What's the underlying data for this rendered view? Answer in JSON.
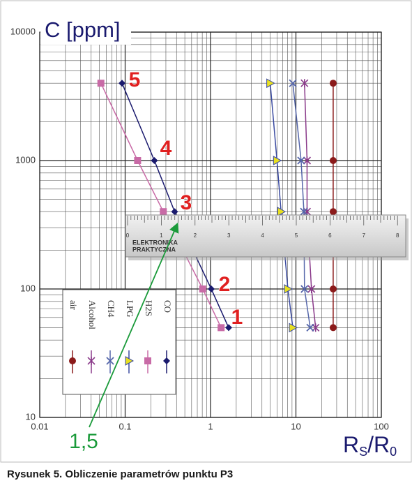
{
  "chart_data": {
    "type": "line",
    "y_label": "C [ppm]",
    "x_label": [
      "R",
      "S",
      "/R",
      "0"
    ],
    "xlim": [
      0.01,
      100
    ],
    "ylim": [
      10,
      10000
    ],
    "xticks": [
      0.01,
      0.1,
      1,
      10,
      100
    ],
    "yticks": [
      10,
      100,
      1000,
      10000
    ],
    "log_x": true,
    "log_y": true,
    "grid": true,
    "minor_grid": true,
    "series": [
      {
        "name": "air",
        "color": "#8b1a1a",
        "marker": "circle",
        "marker_color": "#8b1a1a",
        "x": [
          27.3,
          27.3,
          27.3,
          27.3,
          27.3
        ],
        "values": [
          4000,
          1000,
          400,
          100,
          50
        ]
      },
      {
        "name": "Alcohol",
        "color": "#8a3a8a",
        "marker": "star",
        "marker_color": "#8a3a8a",
        "x": [
          12.6,
          13.5,
          13.5,
          15.2,
          17.0
        ],
        "values": [
          4000,
          1000,
          400,
          100,
          50
        ]
      },
      {
        "name": "CH4",
        "color": "#5566aa",
        "marker": "x",
        "marker_color": "#5566aa",
        "x": [
          9.2,
          11.5,
          12.4,
          12.6,
          14.7
        ],
        "values": [
          4000,
          1000,
          400,
          100,
          50
        ]
      },
      {
        "name": "LPG",
        "color": "#3a4aa0",
        "marker": "triangle",
        "marker_color": "#e8e020",
        "x": [
          5.0,
          6.0,
          6.7,
          8.05,
          9.2
        ],
        "values": [
          4000,
          1000,
          400,
          100,
          50
        ]
      },
      {
        "name": "H2S",
        "color": "#c86aa6",
        "marker": "square",
        "marker_color": "#c86aa6",
        "x": [
          0.052,
          0.14,
          0.28,
          0.81,
          1.33
        ],
        "values": [
          4000,
          1000,
          400,
          100,
          50
        ]
      },
      {
        "name": "CO",
        "color": "#1a1a6e",
        "marker": "diamond",
        "marker_color": "#1a1a6e",
        "x": [
          0.092,
          0.22,
          0.38,
          1.02,
          1.63
        ],
        "values": [
          4000,
          1000,
          400,
          100,
          50
        ]
      }
    ],
    "annotations": [
      {
        "text": "5",
        "color": "#e02020"
      },
      {
        "text": "4",
        "color": "#e02020"
      },
      {
        "text": "3",
        "color": "#e02020"
      },
      {
        "text": "2",
        "color": "#e02020"
      },
      {
        "text": "1",
        "color": "#e02020"
      },
      {
        "text": "1,5",
        "color": "#1a9a3a"
      }
    ]
  },
  "ruler": {
    "brand": [
      "ELEKTRONIKA",
      "PRAKTYCZNA"
    ],
    "scale": [
      0,
      1,
      2,
      3,
      4,
      5,
      6,
      7,
      8
    ]
  },
  "caption": "Rysunek 5. Obliczenie parametrów punktu P3"
}
